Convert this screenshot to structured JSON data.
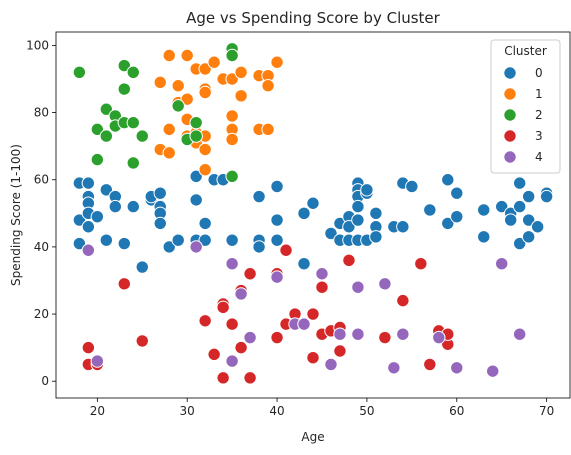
{
  "chart_data": {
    "type": "scatter",
    "title": "Age vs Spending Score by Cluster",
    "xlabel": "Age",
    "ylabel": "Spending Score (1-100)",
    "xlim": [
      15.4,
      72.6
    ],
    "ylim": [
      -5,
      104
    ],
    "xticks": [
      20,
      30,
      40,
      50,
      60,
      70
    ],
    "yticks": [
      0,
      20,
      40,
      60,
      80,
      100
    ],
    "grid": false,
    "legend": {
      "title": "Cluster",
      "placement": "top-right"
    },
    "series": [
      {
        "name": "0",
        "color": "#1f77b4",
        "points": [
          [
            18,
            59
          ],
          [
            18,
            48
          ],
          [
            18,
            41
          ],
          [
            19,
            59
          ],
          [
            19,
            55
          ],
          [
            19,
            53
          ],
          [
            19,
            50
          ],
          [
            19,
            46
          ],
          [
            20,
            49
          ],
          [
            21,
            57
          ],
          [
            21,
            42
          ],
          [
            22,
            55
          ],
          [
            22,
            52
          ],
          [
            23,
            41
          ],
          [
            24,
            52
          ],
          [
            25,
            34
          ],
          [
            26,
            54
          ],
          [
            26,
            55
          ],
          [
            27,
            56
          ],
          [
            27,
            52
          ],
          [
            27,
            50
          ],
          [
            27,
            47
          ],
          [
            28,
            40
          ],
          [
            29,
            42
          ],
          [
            31,
            54
          ],
          [
            31,
            42
          ],
          [
            31,
            61
          ],
          [
            32,
            47
          ],
          [
            32,
            42
          ],
          [
            33,
            60
          ],
          [
            34,
            60
          ],
          [
            35,
            42
          ],
          [
            38,
            55
          ],
          [
            38,
            42
          ],
          [
            38,
            40
          ],
          [
            40,
            58
          ],
          [
            40,
            48
          ],
          [
            40,
            42
          ],
          [
            43,
            50
          ],
          [
            43,
            35
          ],
          [
            44,
            53
          ],
          [
            46,
            44
          ],
          [
            47,
            47
          ],
          [
            47,
            42
          ],
          [
            48,
            49
          ],
          [
            48,
            42
          ],
          [
            48,
            46
          ],
          [
            49,
            59
          ],
          [
            49,
            57
          ],
          [
            49,
            55
          ],
          [
            49,
            52
          ],
          [
            49,
            48
          ],
          [
            49,
            42
          ],
          [
            50,
            56
          ],
          [
            50,
            42
          ],
          [
            50,
            57
          ],
          [
            51,
            46
          ],
          [
            51,
            50
          ],
          [
            51,
            43
          ],
          [
            53,
            46
          ],
          [
            54,
            59
          ],
          [
            54,
            46
          ],
          [
            55,
            58
          ],
          [
            57,
            51
          ],
          [
            59,
            60
          ],
          [
            59,
            47
          ],
          [
            60,
            56
          ],
          [
            60,
            49
          ],
          [
            63,
            51
          ],
          [
            63,
            43
          ],
          [
            65,
            52
          ],
          [
            66,
            50
          ],
          [
            66,
            48
          ],
          [
            67,
            59
          ],
          [
            67,
            52
          ],
          [
            67,
            41
          ],
          [
            68,
            55
          ],
          [
            68,
            48
          ],
          [
            68,
            43
          ],
          [
            69,
            46
          ],
          [
            70,
            56
          ],
          [
            70,
            55
          ]
        ]
      },
      {
        "name": "1",
        "color": "#ff7f0e",
        "points": [
          [
            27,
            89
          ],
          [
            27,
            69
          ],
          [
            28,
            97
          ],
          [
            28,
            75
          ],
          [
            28,
            68
          ],
          [
            29,
            88
          ],
          [
            29,
            83
          ],
          [
            30,
            97
          ],
          [
            30,
            84
          ],
          [
            30,
            78
          ],
          [
            30,
            73
          ],
          [
            31,
            93
          ],
          [
            31,
            74
          ],
          [
            31,
            71
          ],
          [
            32,
            93
          ],
          [
            32,
            87
          ],
          [
            32,
            86
          ],
          [
            32,
            73
          ],
          [
            32,
            69
          ],
          [
            32,
            63
          ],
          [
            33,
            95
          ],
          [
            34,
            90
          ],
          [
            34,
            90
          ],
          [
            35,
            90
          ],
          [
            35,
            79
          ],
          [
            35,
            75
          ],
          [
            35,
            72
          ],
          [
            36,
            92
          ],
          [
            36,
            85
          ],
          [
            38,
            91
          ],
          [
            38,
            75
          ],
          [
            39,
            91
          ],
          [
            39,
            88
          ],
          [
            39,
            75
          ],
          [
            40,
            95
          ]
        ]
      },
      {
        "name": "2",
        "color": "#2ca02c",
        "points": [
          [
            18,
            92
          ],
          [
            20,
            75
          ],
          [
            20,
            66
          ],
          [
            21,
            81
          ],
          [
            21,
            73
          ],
          [
            22,
            79
          ],
          [
            22,
            76
          ],
          [
            23,
            94
          ],
          [
            23,
            87
          ],
          [
            23,
            77
          ],
          [
            24,
            92
          ],
          [
            24,
            77
          ],
          [
            24,
            65
          ],
          [
            25,
            73
          ],
          [
            29,
            82
          ],
          [
            30,
            72
          ],
          [
            31,
            77
          ],
          [
            31,
            73
          ],
          [
            35,
            99
          ],
          [
            35,
            97
          ],
          [
            35,
            61
          ]
        ]
      },
      {
        "name": "3",
        "color": "#d62728",
        "points": [
          [
            19,
            10
          ],
          [
            19,
            5
          ],
          [
            20,
            5
          ],
          [
            23,
            29
          ],
          [
            25,
            12
          ],
          [
            32,
            18
          ],
          [
            33,
            8
          ],
          [
            34,
            23
          ],
          [
            34,
            22
          ],
          [
            34,
            1
          ],
          [
            35,
            17
          ],
          [
            36,
            27
          ],
          [
            36,
            10
          ],
          [
            37,
            32
          ],
          [
            37,
            1
          ],
          [
            40,
            32
          ],
          [
            40,
            13
          ],
          [
            41,
            39
          ],
          [
            41,
            17
          ],
          [
            42,
            20
          ],
          [
            43,
            17
          ],
          [
            44,
            20
          ],
          [
            44,
            7
          ],
          [
            45,
            28
          ],
          [
            45,
            14
          ],
          [
            46,
            15
          ],
          [
            47,
            16
          ],
          [
            47,
            9
          ],
          [
            48,
            36
          ],
          [
            52,
            13
          ],
          [
            54,
            24
          ],
          [
            56,
            35
          ],
          [
            57,
            5
          ],
          [
            58,
            15
          ],
          [
            59,
            11
          ],
          [
            59,
            14
          ]
        ]
      },
      {
        "name": "4",
        "color": "#9467bd",
        "points": [
          [
            19,
            39
          ],
          [
            20,
            6
          ],
          [
            31,
            40
          ],
          [
            35,
            35
          ],
          [
            35,
            6
          ],
          [
            36,
            26
          ],
          [
            37,
            13
          ],
          [
            40,
            31
          ],
          [
            42,
            17
          ],
          [
            43,
            17
          ],
          [
            45,
            32
          ],
          [
            46,
            5
          ],
          [
            47,
            14
          ],
          [
            49,
            28
          ],
          [
            49,
            14
          ],
          [
            52,
            29
          ],
          [
            53,
            4
          ],
          [
            54,
            14
          ],
          [
            58,
            13
          ],
          [
            60,
            4
          ],
          [
            64,
            3
          ],
          [
            65,
            35
          ],
          [
            67,
            14
          ]
        ]
      }
    ]
  }
}
